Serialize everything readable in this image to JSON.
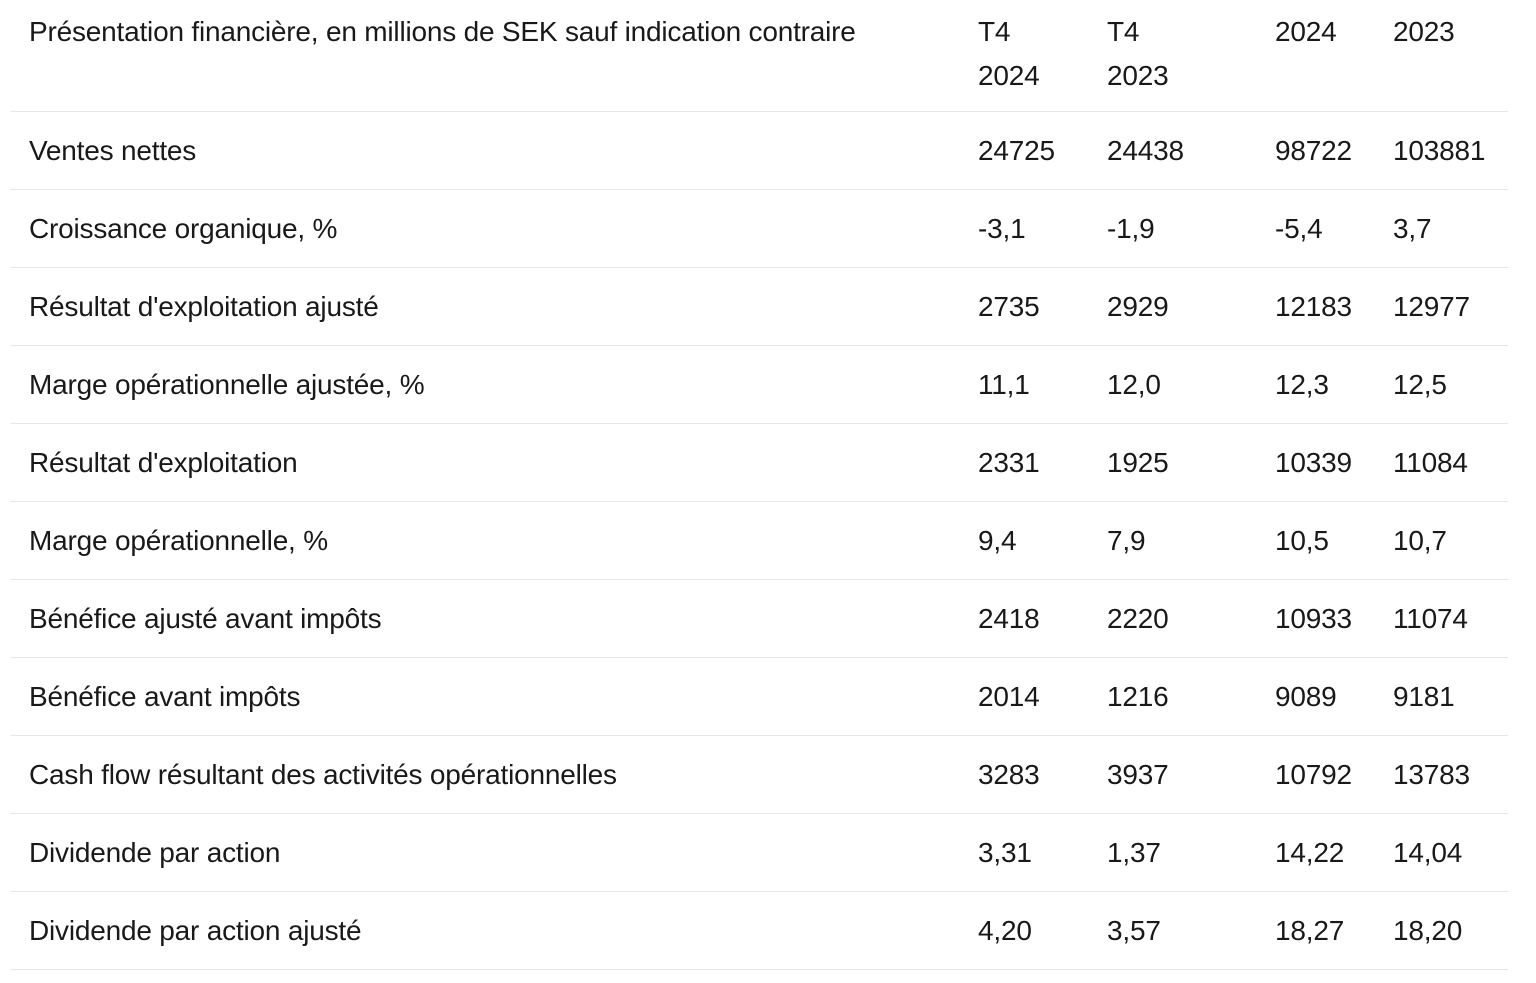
{
  "table": {
    "header": {
      "label": "Présentation financière, en millions de SEK sauf indication contraire",
      "columns": [
        "T4 2024",
        "T4 2023",
        "2024",
        "2023"
      ]
    },
    "rows": [
      {
        "label": "Ventes nettes",
        "values": [
          "24725",
          "24438",
          "98722",
          "103881"
        ]
      },
      {
        "label": "Croissance organique, %",
        "values": [
          "-3,1",
          "-1,9",
          "-5,4",
          "3,7"
        ]
      },
      {
        "label": "Résultat d'exploitation ajusté",
        "values": [
          "2735",
          "2929",
          "12183",
          "12977"
        ]
      },
      {
        "label": "Marge opérationnelle ajustée, %",
        "values": [
          "11,1",
          "12,0",
          "12,3",
          "12,5"
        ]
      },
      {
        "label": "Résultat d'exploitation",
        "values": [
          "2331",
          "1925",
          "10339",
          "11084"
        ]
      },
      {
        "label": "Marge opérationnelle, %",
        "values": [
          "9,4",
          "7,9",
          "10,5",
          "10,7"
        ]
      },
      {
        "label": "Bénéfice ajusté avant impôts",
        "values": [
          "2418",
          "2220",
          "10933",
          "11074"
        ]
      },
      {
        "label": "Bénéfice avant impôts",
        "values": [
          "2014",
          "1216",
          "9089",
          "9181"
        ]
      },
      {
        "label": "Cash flow résultant des activités opérationnelles",
        "values": [
          "3283",
          "3937",
          "10792",
          "13783"
        ]
      },
      {
        "label": "Dividende par action",
        "values": [
          "3,31",
          "1,37",
          "14,22",
          "14,04"
        ]
      },
      {
        "label": "Dividende par action ajusté",
        "values": [
          "4,20",
          "3,57",
          "18,27",
          "18,20"
        ]
      }
    ]
  },
  "colors": {
    "text": "#191919",
    "divider": "#e5e8ea",
    "background": "#ffffff"
  }
}
